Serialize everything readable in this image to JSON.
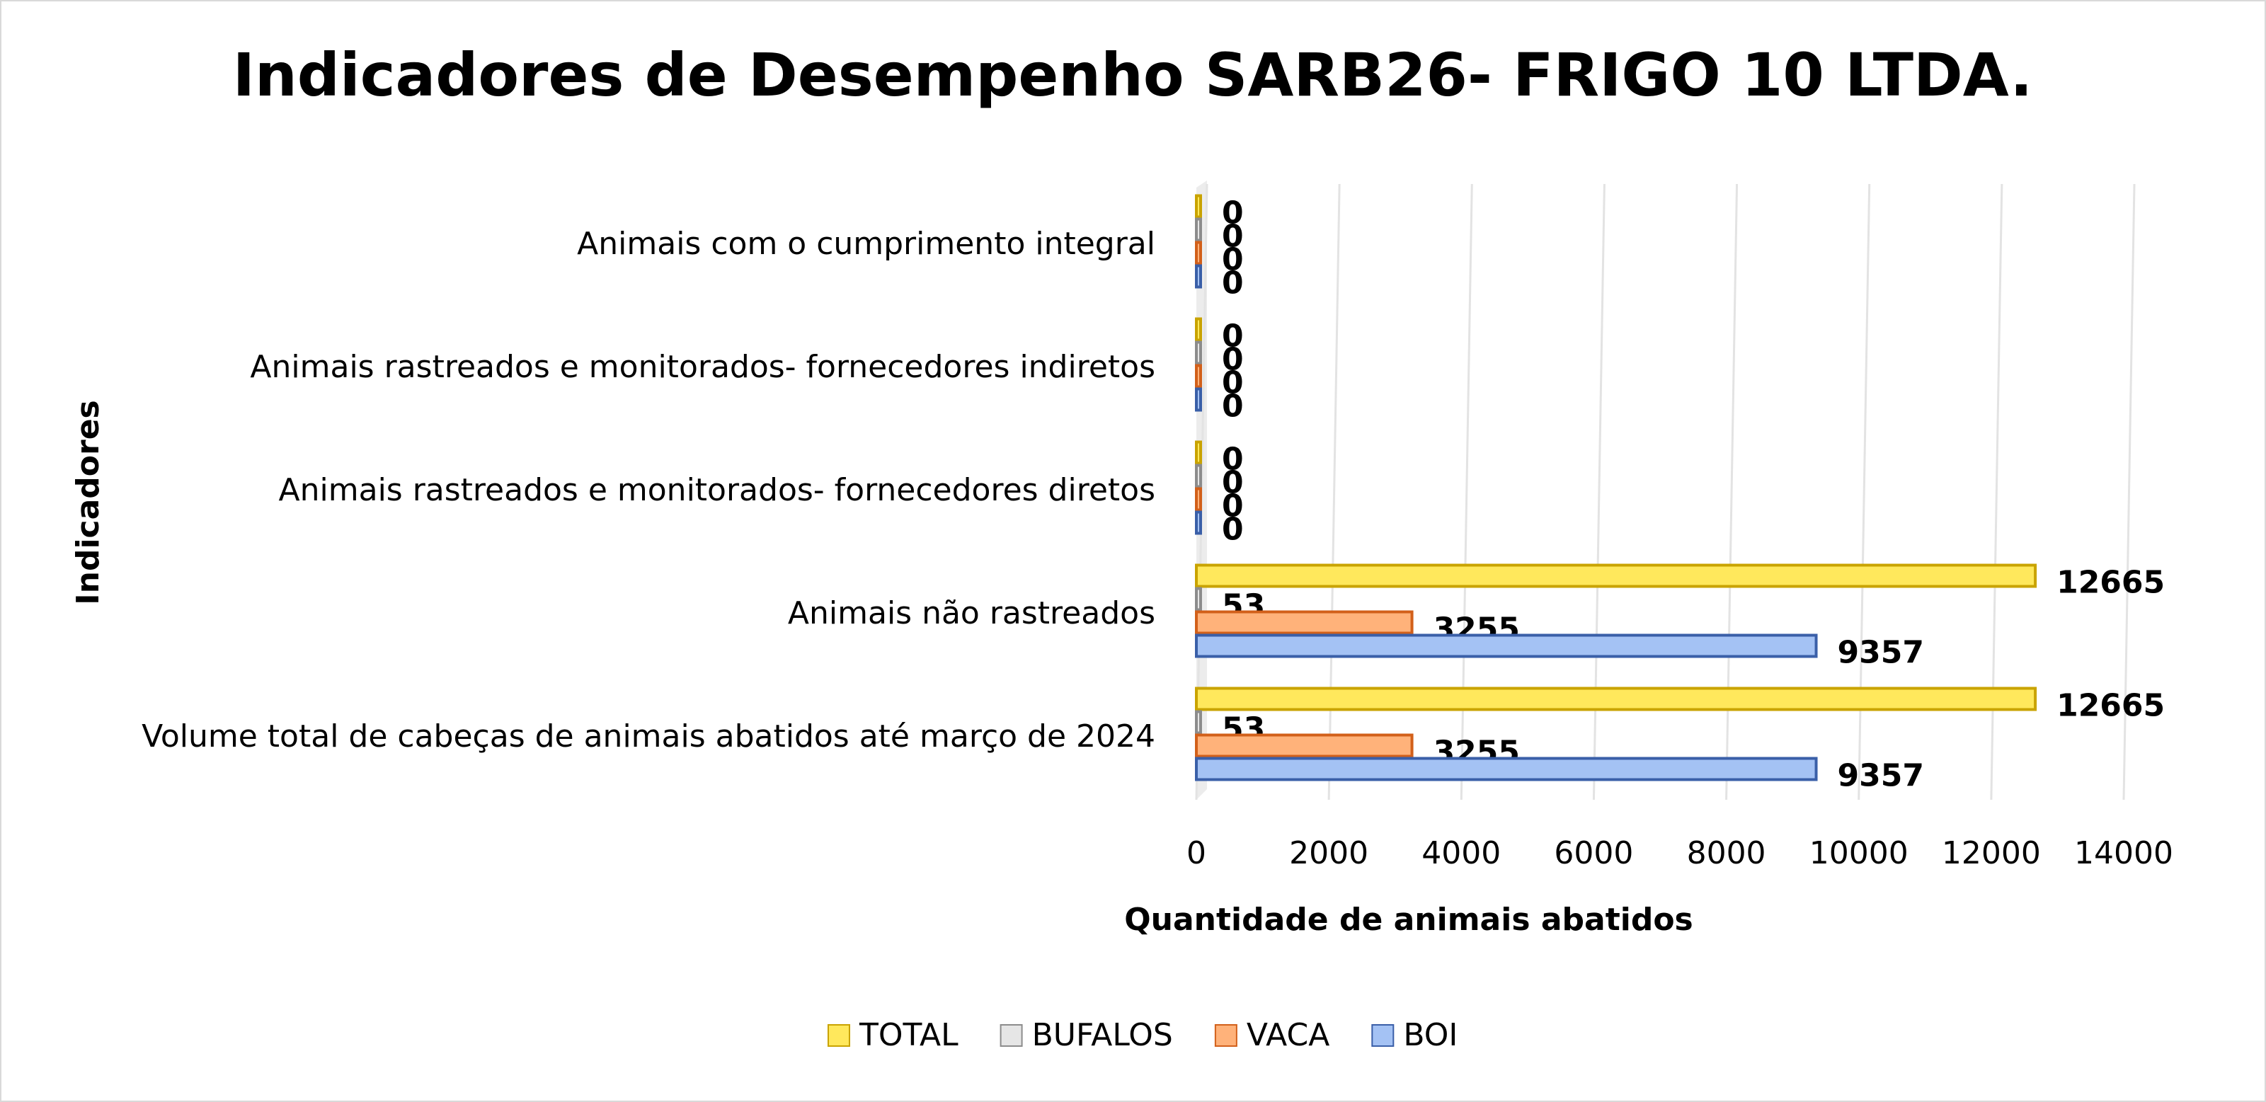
{
  "chart_data": {
    "type": "bar",
    "orientation": "horizontal",
    "title": "Indicadores de Desempenho SARB26- FRIGO 10 LTDA.",
    "x_label": "Quantidade de animais abatidos",
    "y_label": "Indicadores",
    "categories": [
      "Volume total de cabeças de animais abatidos até março de 2024",
      "Animais não rastreados",
      "Animais rastreados e monitorados- fornecedores diretos",
      "Animais rastreados e monitorados- fornecedores indiretos",
      "Animais com o cumprimento integral"
    ],
    "series": [
      {
        "name": "TOTAL",
        "color": "#ffe85c",
        "edge": "#c9a300",
        "values": [
          12665,
          12665,
          0,
          0,
          0
        ]
      },
      {
        "name": "BUFALOS",
        "color": "#e6e6e6",
        "edge": "#8c8c8c",
        "values": [
          53,
          53,
          0,
          0,
          0
        ]
      },
      {
        "name": "VACA",
        "color": "#ffb27a",
        "edge": "#d2601a",
        "values": [
          3255,
          3255,
          0,
          0,
          0
        ]
      },
      {
        "name": "BOI",
        "color": "#a4c2f4",
        "edge": "#3a5fa8",
        "values": [
          9357,
          9357,
          0,
          0,
          0
        ]
      }
    ],
    "xlim": [
      0,
      14000
    ],
    "xticks": [
      0,
      2000,
      4000,
      6000,
      8000,
      10000,
      12000,
      14000
    ],
    "grid": true,
    "legend": "bottom"
  }
}
